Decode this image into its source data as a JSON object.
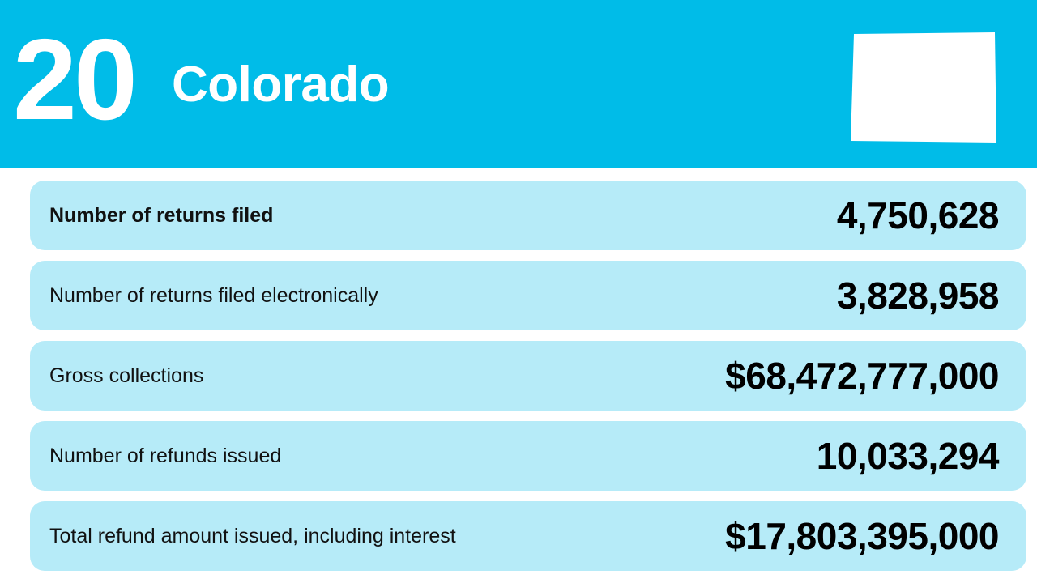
{
  "header": {
    "rank": "20",
    "state_name": "Colorado",
    "state_shape_icon": "colorado-state-outline-icon",
    "background_color": "#00bce8"
  },
  "stats": [
    {
      "label": "Number of returns filed",
      "value": "4,750,628"
    },
    {
      "label": "Number of returns filed electronically",
      "value": "3,828,958"
    },
    {
      "label": "Gross collections",
      "value": "$68,472,777,000"
    },
    {
      "label": "Number of refunds issued",
      "value": "10,033,294"
    },
    {
      "label": "Total refund amount issued, including interest",
      "value": "$17,803,395,000"
    }
  ],
  "row_color": "#b6ebf8"
}
